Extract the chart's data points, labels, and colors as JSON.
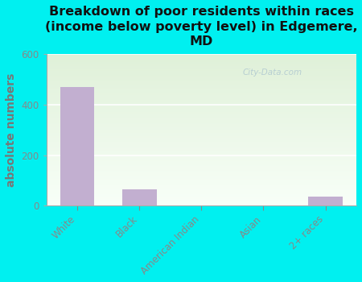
{
  "title": "Breakdown of poor residents within races\n(income below poverty level) in Edgemere,\nMD",
  "categories": [
    "White",
    "Black",
    "American Indian",
    "Asian",
    "2+ races"
  ],
  "values": [
    470,
    65,
    0,
    0,
    35
  ],
  "bar_color": "#c2afd0",
  "ylabel": "absolute numbers",
  "ylim": [
    0,
    600
  ],
  "yticks": [
    0,
    200,
    400,
    600
  ],
  "background_color": "#00f0f0",
  "plot_bg_top": "#dff0d8",
  "plot_bg_bottom": "#f8fff8",
  "watermark": "City-Data.com",
  "title_fontsize": 11.5,
  "ylabel_fontsize": 10,
  "ylabel_color": "#777777",
  "title_color": "#111111",
  "tick_color": "#888888"
}
